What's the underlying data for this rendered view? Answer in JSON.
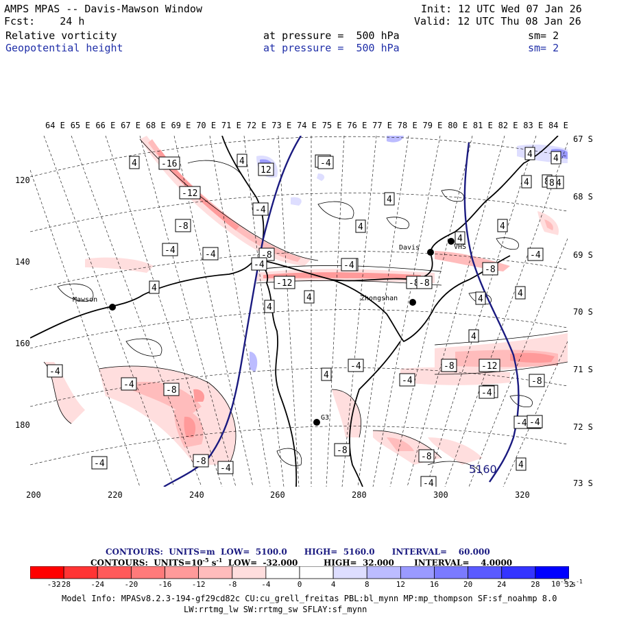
{
  "header": {
    "title": "AMPS MPAS -- Davis-Mawson Window",
    "forecast": "Fcst:    24 h",
    "init": "Init: 12 UTC Wed 07 Jan 26",
    "valid": "Valid: 12 UTC Thu 08 Jan 26",
    "field1": "Relative vorticity",
    "field1_level": "at pressure =  500 hPa",
    "field1_sm": "sm= 2",
    "field2": "Geopotential height",
    "field2_level": "at pressure =  500 hPa",
    "field2_sm": "sm= 2"
  },
  "map": {
    "lon_labels": [
      "64 E",
      "65 E",
      "66 E",
      "67 E",
      "68 E",
      "69 E",
      "70 E",
      "71 E",
      "72 E",
      "73 E",
      "74 E",
      "75 E",
      "76 E",
      "77 E",
      "78 E",
      "79 E",
      "80 E",
      "81 E",
      "82 E",
      "83 E",
      "84 E"
    ],
    "lat_labels": [
      "67 S",
      "68 S",
      "69 S",
      "70 S",
      "71 S",
      "72 S",
      "73 S"
    ],
    "y_labels": [
      "120",
      "140",
      "160",
      "180"
    ],
    "x_labels": [
      "200",
      "220",
      "240",
      "260",
      "280",
      "300",
      "320"
    ],
    "stations": [
      {
        "name": "Mawson"
      },
      {
        "name": "Davis"
      },
      {
        "name": "Zhongshan"
      },
      {
        "name": "VHS"
      },
      {
        "name": "G3"
      }
    ],
    "height_contour_label": "5160",
    "vort_labels": [
      {
        "text": "-16"
      },
      {
        "text": "-12"
      },
      {
        "text": "-8"
      },
      {
        "text": "-4"
      },
      {
        "text": "-4"
      },
      {
        "text": "4"
      },
      {
        "text": "4"
      },
      {
        "text": "12"
      },
      {
        "text": "-4"
      },
      {
        "text": "-4"
      },
      {
        "text": "-8"
      },
      {
        "text": "-12"
      },
      {
        "text": "4"
      },
      {
        "text": "-4"
      },
      {
        "text": "4"
      },
      {
        "text": "4"
      },
      {
        "text": "4"
      },
      {
        "text": "4"
      },
      {
        "text": "-4"
      },
      {
        "text": "-8"
      },
      {
        "text": "4"
      },
      {
        "text": "4"
      },
      {
        "text": "-4"
      },
      {
        "text": "4"
      },
      {
        "text": "4"
      },
      {
        "text": "4"
      },
      {
        "text": "-8"
      },
      {
        "text": "4"
      },
      {
        "text": "4"
      },
      {
        "text": "8"
      },
      {
        "text": "-8"
      },
      {
        "text": "-12"
      },
      {
        "text": "-8"
      },
      {
        "text": "-4"
      },
      {
        "text": "-4"
      },
      {
        "text": "-4"
      },
      {
        "text": "-8"
      },
      {
        "text": "-4"
      },
      {
        "text": "-4"
      },
      {
        "text": "-4"
      },
      {
        "text": "-8"
      },
      {
        "text": "-4"
      },
      {
        "text": "4"
      },
      {
        "text": "-8"
      },
      {
        "text": "-8"
      },
      {
        "text": "-4"
      },
      {
        "text": "-4"
      },
      {
        "text": "4"
      },
      {
        "text": "-4"
      },
      {
        "text": "-4"
      },
      {
        "text": "-8"
      },
      {
        "text": "-4"
      },
      {
        "text": "-4"
      },
      {
        "text": "4"
      },
      {
        "text": "-4"
      },
      {
        "text": "8"
      },
      {
        "text": "4"
      }
    ]
  },
  "footer": {
    "contours1": "CONTOURS:  UNITS=m  LOW=  5100.0      HIGH=  5160.0      INTERVAL=    60.000",
    "contours2_pre": "CONTOURS:  UNITS=10",
    "contours2_exp": "-5",
    "contours2_post": " s",
    "contours2_exp2": "-1",
    "contours2_rest": "  LOW=  -32.000         HIGH=  32.000       INTERVAL=    4.0000",
    "colorbar_ticks": [
      "-32",
      "-28",
      "-24",
      "-20",
      "-16",
      "-12",
      "-8",
      "-4",
      "0",
      "4",
      "8",
      "12",
      "16",
      "20",
      "24",
      "28",
      "32"
    ],
    "colorbar_units": "10",
    "colorbar_units_exp": "-5",
    "colorbar_units_s": " s",
    "colorbar_units_exp2": "-1",
    "colorbar_colors": [
      "#ff0000",
      "#ff3434",
      "#ff5a5a",
      "#ff7a7a",
      "#ff9a9a",
      "#ffbcbc",
      "#ffdede",
      "#ffffff",
      "#ffffff",
      "#dedeff",
      "#bcbcff",
      "#9a9aff",
      "#7a7aff",
      "#5a5aff",
      "#3434ff",
      "#0000ff"
    ],
    "model_info1": "Model Info: MPASv8.2.3-194-gf29cd82c CU:cu_grell_freitas PBL:bl_mynn MP:mp_thompson SF:sf_noahmp 8.0",
    "model_info2": "LW:rrtmg_lw SW:rrtmg_sw SFLAY:sf_mynn"
  }
}
